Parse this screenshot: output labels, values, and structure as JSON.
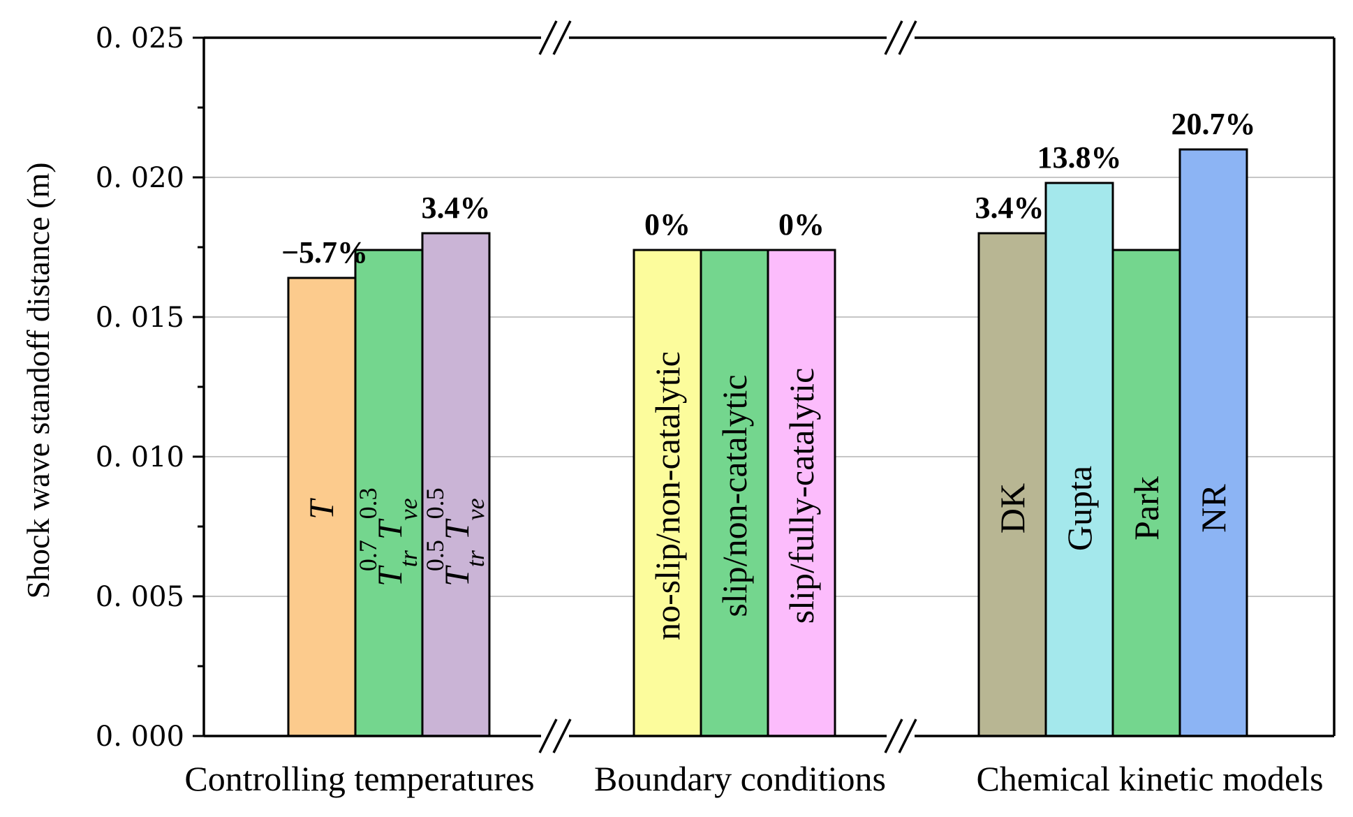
{
  "chart_data": {
    "type": "bar",
    "ylabel": "Shock wave standoff distance (m)",
    "ylim": [
      0,
      0.025
    ],
    "y_ticks": [
      "0. 000",
      "0. 005",
      "0. 010",
      "0. 015",
      "0. 020",
      "0. 025"
    ],
    "y_tick_values": [
      0,
      0.005,
      0.01,
      0.015,
      0.02,
      0.025
    ],
    "grid": "horizontal",
    "axis_breaks": "between groups",
    "groups": [
      {
        "name": "Controlling temperatures",
        "bars": [
          {
            "label": "T",
            "value": 0.0164,
            "color": "#fccb8d",
            "annotation": "−5.7%"
          },
          {
            "label": "T_tr^0.7 T_ve^0.3",
            "value": 0.0174,
            "color": "#74d68e",
            "annotation": ""
          },
          {
            "label": "T_tr^0.5 T_ve^0.5",
            "value": 0.018,
            "color": "#cab4d6",
            "annotation": "3.4%"
          }
        ]
      },
      {
        "name": "Boundary conditions",
        "bars": [
          {
            "label": "no-slip/non-catalytic",
            "value": 0.0174,
            "color": "#fcfc9c",
            "annotation": "0%"
          },
          {
            "label": "slip/non-catalytic",
            "value": 0.0174,
            "color": "#74d68e",
            "annotation": ""
          },
          {
            "label": "slip/fully-catalytic",
            "value": 0.0174,
            "color": "#fcbcfc",
            "annotation": "0%"
          }
        ]
      },
      {
        "name": "Chemical kinetic models",
        "bars": [
          {
            "label": "DK",
            "value": 0.018,
            "color": "#b8b693",
            "annotation": "3.4%"
          },
          {
            "label": "Gupta",
            "value": 0.0198,
            "color": "#a4e8ec",
            "annotation": "13.8%"
          },
          {
            "label": "Park",
            "value": 0.0174,
            "color": "#74d68e",
            "annotation": ""
          },
          {
            "label": "NR",
            "value": 0.021,
            "color": "#8cb4f4",
            "annotation": "20.7%"
          }
        ]
      }
    ]
  }
}
